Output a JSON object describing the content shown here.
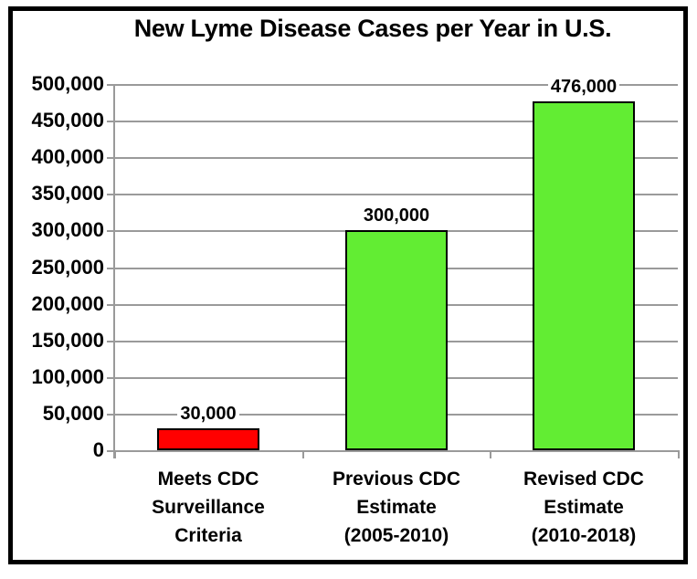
{
  "chart_data": {
    "type": "bar",
    "title": "New Lyme Disease Cases per Year in U.S.",
    "categories": [
      [
        "Meets CDC",
        "Surveillance",
        "Criteria"
      ],
      [
        "Previous CDC",
        "Estimate",
        "(2005-2010)"
      ],
      [
        "Revised CDC",
        "Estimate",
        "(2010-2018)"
      ]
    ],
    "values": [
      30000,
      300000,
      476000
    ],
    "value_labels": [
      "30,000",
      "300,000",
      "476,000"
    ],
    "bar_colors": [
      "#FF0000",
      "#62ED33",
      "#62ED33"
    ],
    "ylim": [
      0,
      500000
    ],
    "ytick_step": 50000,
    "ytick_labels": [
      "500,000",
      "450,000",
      "400,000",
      "350,000",
      "300,000",
      "250,000",
      "200,000",
      "150,000",
      "100,000",
      "50,000",
      "0"
    ],
    "xlabel": "",
    "ylabel": "",
    "grid": true,
    "legend": "none"
  },
  "colors": {
    "bar_border": "#000000",
    "grid": "#9A9A9A",
    "axis": "#9A9A9A",
    "frame": "#000000",
    "background": "#FFFFFF",
    "text": "#000000",
    "red_bar": "#FF0000",
    "green_bar": "#62ED33"
  }
}
